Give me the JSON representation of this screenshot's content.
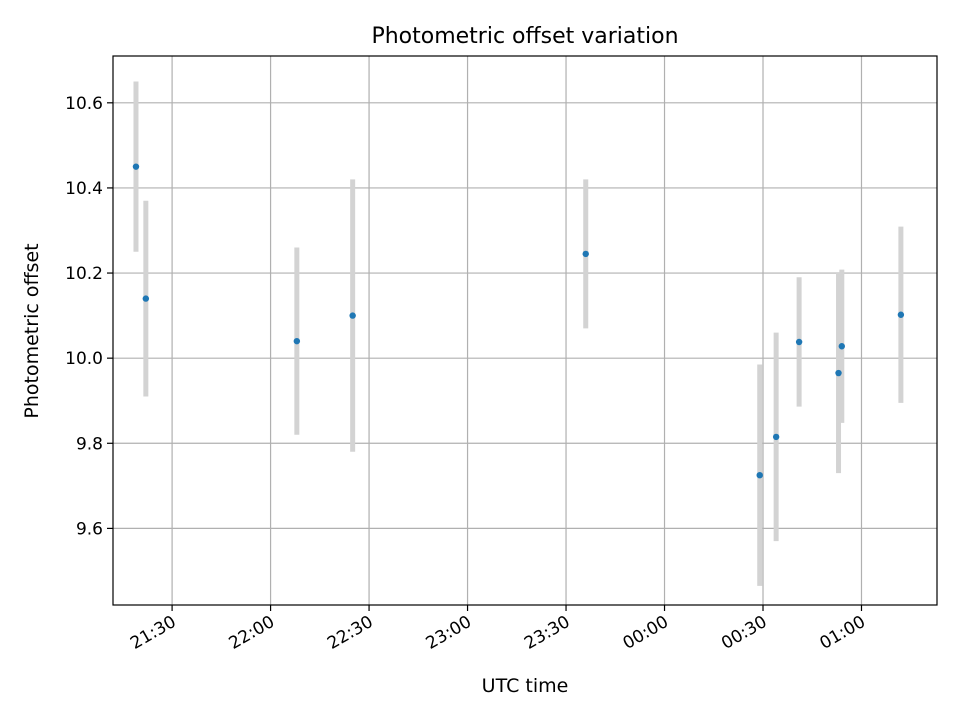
{
  "chart_data": {
    "type": "scatter",
    "title": "Photometric offset variation",
    "xlabel": "UTC time",
    "ylabel": "Photometric offset",
    "x_ticks": [
      "21:30",
      "22:00",
      "22:30",
      "23:00",
      "23:30",
      "00:00",
      "00:30",
      "01:00"
    ],
    "y_ticks": [
      "9.6",
      "9.8",
      "10.0",
      "10.2",
      "10.4",
      "10.6"
    ],
    "xlim": [
      "21:12",
      "01:23"
    ],
    "ylim": [
      9.42,
      10.71
    ],
    "grid": true,
    "colors": {
      "point": "#1f77b4",
      "errorbar": "#d3d3d3",
      "grid": "#b0b0b0"
    },
    "series": [
      {
        "x": [
          "21:19",
          "21:22",
          "22:08",
          "22:25",
          "23:36",
          "00:29",
          "00:34",
          "00:41",
          "00:53",
          "00:54",
          "01:12"
        ],
        "y": [
          10.45,
          10.14,
          10.04,
          10.1,
          10.245,
          9.725,
          9.815,
          10.038,
          9.965,
          10.028,
          10.102
        ],
        "yerr": [
          0.2,
          0.23,
          0.22,
          0.32,
          0.175,
          0.26,
          0.245,
          0.152,
          0.235,
          0.18,
          0.207
        ]
      }
    ]
  }
}
